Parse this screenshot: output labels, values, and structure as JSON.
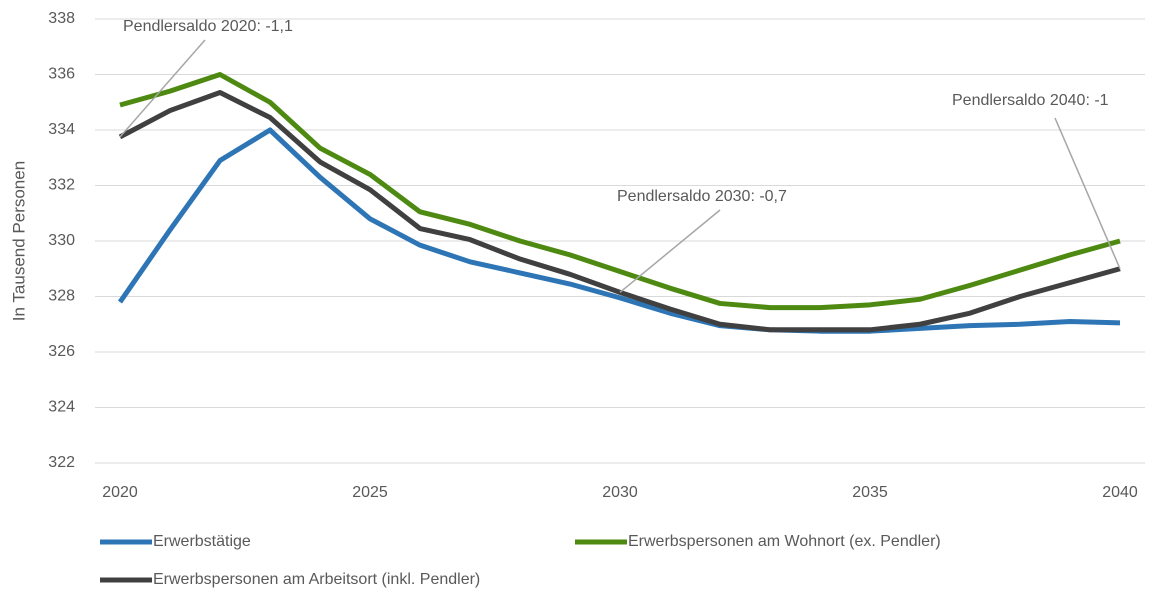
{
  "chart_data": {
    "type": "line",
    "y_label": "In Tausend Personen",
    "x": [
      2020,
      2021,
      2022,
      2023,
      2024,
      2025,
      2026,
      2027,
      2028,
      2029,
      2030,
      2031,
      2032,
      2033,
      2034,
      2035,
      2036,
      2037,
      2038,
      2039,
      2040
    ],
    "xlim": [
      2020,
      2040
    ],
    "xticks": [
      2020,
      2025,
      2030,
      2035,
      2040
    ],
    "ylim": [
      322,
      338
    ],
    "yticks": [
      322,
      324,
      326,
      328,
      330,
      332,
      334,
      336,
      338
    ],
    "grid": true,
    "legend": "bottom",
    "series": [
      {
        "name": "Erwerbstätige",
        "color": "#2e75b6",
        "values": [
          327.8,
          330.4,
          332.9,
          334.0,
          332.3,
          330.8,
          329.85,
          329.25,
          328.85,
          328.45,
          327.95,
          327.4,
          326.95,
          326.8,
          326.75,
          326.75,
          326.85,
          326.95,
          327.0,
          327.1,
          327.05
        ]
      },
      {
        "name": "Erwerbspersonen am Wohnort (ex. Pendler)",
        "color": "#4e8a12",
        "values": [
          334.9,
          335.4,
          336.0,
          335.0,
          333.35,
          332.4,
          331.05,
          330.6,
          330.0,
          329.5,
          328.9,
          328.3,
          327.75,
          327.6,
          327.6,
          327.7,
          327.9,
          328.4,
          328.95,
          329.5,
          330.0
        ]
      },
      {
        "name": "Erwerbspersonen am Arbeitsort (inkl. Pendler)",
        "color": "#404040",
        "values": [
          333.75,
          334.7,
          335.35,
          334.45,
          332.85,
          331.85,
          330.45,
          330.05,
          329.35,
          328.8,
          328.15,
          327.55,
          327.0,
          326.8,
          326.8,
          326.8,
          327.0,
          327.4,
          328.0,
          328.5,
          329.0
        ]
      }
    ],
    "annotations": [
      {
        "text": "Pendlersaldo 2020: -1,1",
        "x": 2020
      },
      {
        "text": "Pendlersaldo 2030: -0,7",
        "x": 2030
      },
      {
        "text": "Pendlersaldo 2040: -1",
        "x": 2040
      }
    ]
  }
}
